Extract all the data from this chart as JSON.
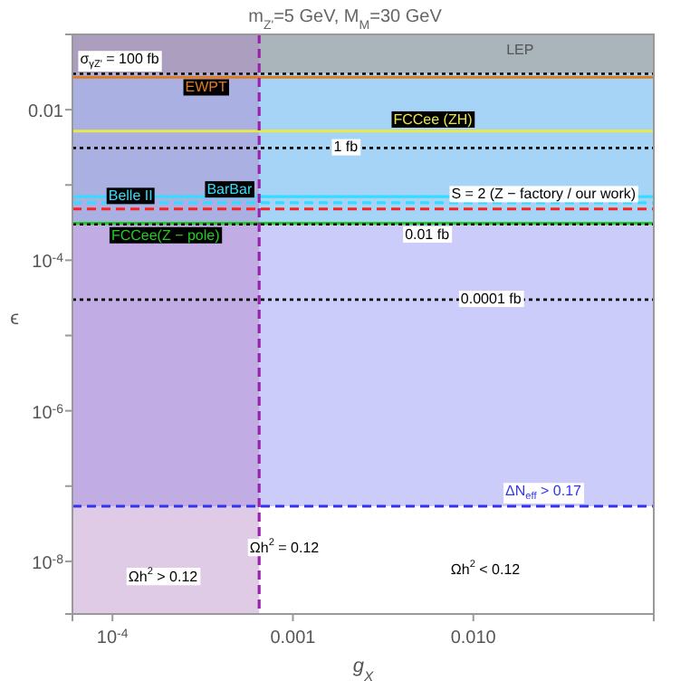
{
  "chart_data": {
    "type": "line",
    "title": "m$_{Z'}$=5 GeV, M$_{M}$=30 GeV",
    "xlabel": "g$_{X}$",
    "ylabel": "ϵ",
    "log": "xy",
    "grid": false,
    "xlim": [
      6e-05,
      0.1
    ],
    "ylim": [
      2e-09,
      0.1
    ],
    "xticks": [
      {
        "value": 0.0001,
        "label": "10$^{-4}$"
      },
      0.001,
      {
        "value": 0.01,
        "label": "0.010"
      }
    ],
    "yticks": [
      {
        "value": 1e-08,
        "label": "10$^{-8}$"
      },
      {
        "value": 1e-07,
        "label": null
      },
      {
        "value": 1e-06,
        "label": "10$^{-6}$"
      },
      {
        "value": 1e-05,
        "label": null
      },
      {
        "value": 0.0001,
        "label": "10$^{-4}$"
      },
      {
        "value": 0.001,
        "label": null
      },
      0.01
    ],
    "bands": [
      {
        "axis": "y",
        "from": 0.03,
        "to": 0.1,
        "label": "LEP",
        "color": "#a9b4bb"
      },
      {
        "axis": "y",
        "from": 0.00031,
        "to": 0.03,
        "color": "#a6d4f7"
      },
      {
        "axis": "y",
        "from": 5.4e-08,
        "to": 0.00031,
        "color": "#ccccfa"
      },
      {
        "axis": "x",
        "from": 6e-05,
        "to": 0.00065,
        "color": "#b27ec2"
      }
    ],
    "ref_lines": [
      {
        "axis": "y",
        "value": 0.03,
        "color": "#000000",
        "line_style": "dotted"
      },
      {
        "axis": "y",
        "value": 0.027,
        "label": "EWPT",
        "color": "#e07b20",
        "line_style": "solid"
      },
      {
        "axis": "y",
        "value": 0.0052,
        "label": "FCCee (ZH)",
        "color": "#e8e84a",
        "line_style": "solid"
      },
      {
        "axis": "y",
        "value": 0.0031,
        "label": "1 fb",
        "color": "#000000",
        "line_style": "dotted"
      },
      {
        "axis": "y",
        "value": 0.0007,
        "label": "Belle II",
        "color": "#33ddff",
        "line_style": "solid"
      },
      {
        "axis": "y",
        "value": 0.00058,
        "label": "BarBar",
        "color": "#33ddff",
        "line_style": "dashed"
      },
      {
        "axis": "y",
        "value": 0.00048,
        "color": "#ff2020",
        "line_style": "dashed"
      },
      {
        "axis": "y",
        "value": 0.00031,
        "label": "FCCee(Z − pole)",
        "color": "#22cc22",
        "line_style": "solid"
      },
      {
        "axis": "y",
        "value": 0.0003,
        "label": "0.01 fb",
        "color": "#000000",
        "line_style": "dotted"
      },
      {
        "axis": "y",
        "value": 3e-05,
        "label": "0.0001 fb",
        "color": "#000000",
        "line_style": "dotted"
      },
      {
        "axis": "y",
        "value": 5.4e-08,
        "label": "ΔN$_{eff}$ > 0.17",
        "color": "#3333ee",
        "line_style": "dashed"
      },
      {
        "axis": "x",
        "value": 0.00065,
        "color": "#9922aa",
        "line_style": "dashed"
      }
    ],
    "annotations": [
      "σ$_{γZ'}$ = 100 fb",
      {
        "text": "S = 2 (Z − factory / our work)",
        "x": 0.0245,
        "y": 0.00074
      },
      "Ωh$^{2}$ = 0.12",
      "Ωh$^{2}$ > 0.12",
      "Ωh$^{2}$ < 0.12"
    ]
  }
}
